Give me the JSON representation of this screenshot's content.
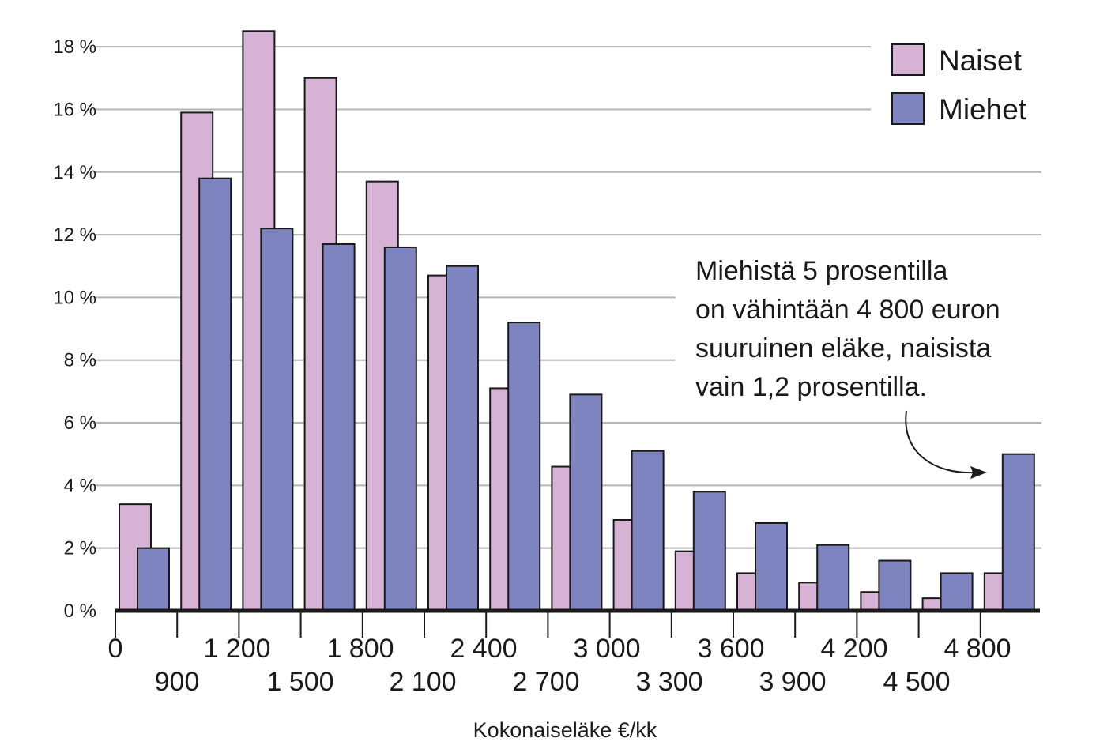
{
  "chart_data": {
    "type": "bar",
    "xlabel": "Kokonaiseläke €/kk",
    "ylim": [
      0,
      18
    ],
    "yticks": [
      0,
      2,
      4,
      6,
      8,
      10,
      12,
      14,
      16,
      18
    ],
    "ytick_labels": [
      "0 %",
      "2 %",
      "4 %",
      "6 %",
      "8 %",
      "10 %",
      "12 %",
      "14 %",
      "16 %",
      "18 %"
    ],
    "xtick_labels_top": [
      "0",
      "1 200",
      "1 800",
      "2 400",
      "3 000",
      "3 600",
      "4 200",
      "4 800"
    ],
    "xtick_labels_bottom": [
      "900",
      "1 500",
      "2 100",
      "2 700",
      "3 300",
      "3 900",
      "4 500"
    ],
    "categories": [
      "0–900",
      "900–1 200",
      "1 200–1 500",
      "1 500–1 800",
      "1 800–2 100",
      "2 100–2 400",
      "2 400–2 700",
      "2 700–3 000",
      "3 000–3 300",
      "3 300–3 600",
      "3 600–3 900",
      "3 900–4 200",
      "4 200–4 500",
      "4 500–4 800",
      "4 800–"
    ],
    "series": [
      {
        "name": "Naiset",
        "color": "#d6b3d4",
        "values": [
          3.4,
          15.9,
          18.5,
          17.0,
          13.7,
          10.7,
          7.1,
          4.6,
          2.9,
          1.9,
          1.2,
          0.9,
          0.6,
          0.4,
          1.2
        ]
      },
      {
        "name": "Miehet",
        "color": "#7e84bf",
        "values": [
          2.0,
          13.8,
          12.2,
          11.7,
          11.6,
          11.0,
          9.2,
          6.9,
          5.1,
          3.8,
          2.8,
          2.1,
          1.6,
          1.2,
          5.0
        ]
      }
    ],
    "grid": true,
    "legend_position": "top-right",
    "annotation": {
      "lines": [
        "Miehistä 5 prosentilla",
        "on vähintään 4 800 euron",
        "suuruinen eläke, naisista",
        "vain 1,2 prosentilla."
      ]
    }
  }
}
